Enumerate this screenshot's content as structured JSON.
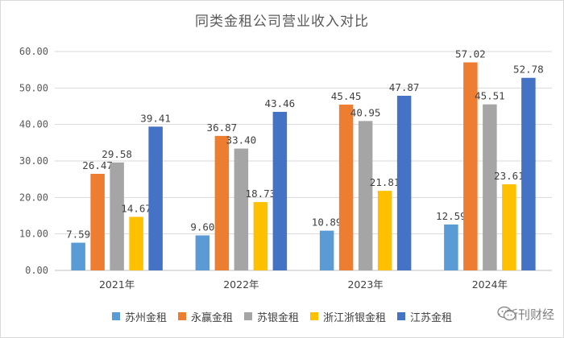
{
  "chart_data": {
    "type": "bar",
    "title": "同类金租公司营业收入对比",
    "categories": [
      "2021年",
      "2022年",
      "2023年",
      "2024年"
    ],
    "ylim": [
      0,
      60
    ],
    "yticks": [
      "0.00",
      "10.00",
      "20.00",
      "30.00",
      "40.00",
      "50.00",
      "60.00"
    ],
    "grid": true,
    "legend_position": "bottom",
    "series": [
      {
        "name": "苏州金租",
        "color": "#5b9bd5",
        "values": [
          7.59,
          9.6,
          10.89,
          12.59
        ],
        "labels": [
          "7.59",
          "9.60",
          "10.89",
          "12.59"
        ]
      },
      {
        "name": "永赢金租",
        "color": "#ed7d31",
        "values": [
          26.47,
          36.87,
          45.45,
          57.02
        ],
        "labels": [
          "26.47",
          "36.87",
          "45.45",
          "57.02"
        ]
      },
      {
        "name": "苏银金租",
        "color": "#a5a5a5",
        "values": [
          29.58,
          33.4,
          40.95,
          45.51
        ],
        "labels": [
          "29.58",
          "33.40",
          "40.95",
          "45.51"
        ]
      },
      {
        "name": "浙江浙银金租",
        "color": "#ffc000",
        "values": [
          14.67,
          18.73,
          21.81,
          23.61
        ],
        "labels": [
          "14.67",
          "18.73",
          "21.81",
          "23.61"
        ]
      },
      {
        "name": "江苏金租",
        "color": "#4472c4",
        "values": [
          39.41,
          43.46,
          47.87,
          52.78
        ],
        "labels": [
          "39.41",
          "43.46",
          "47.87",
          "52.78"
        ]
      }
    ]
  },
  "watermark": {
    "text": "新刊财经",
    "icon": "wechat-icon"
  }
}
